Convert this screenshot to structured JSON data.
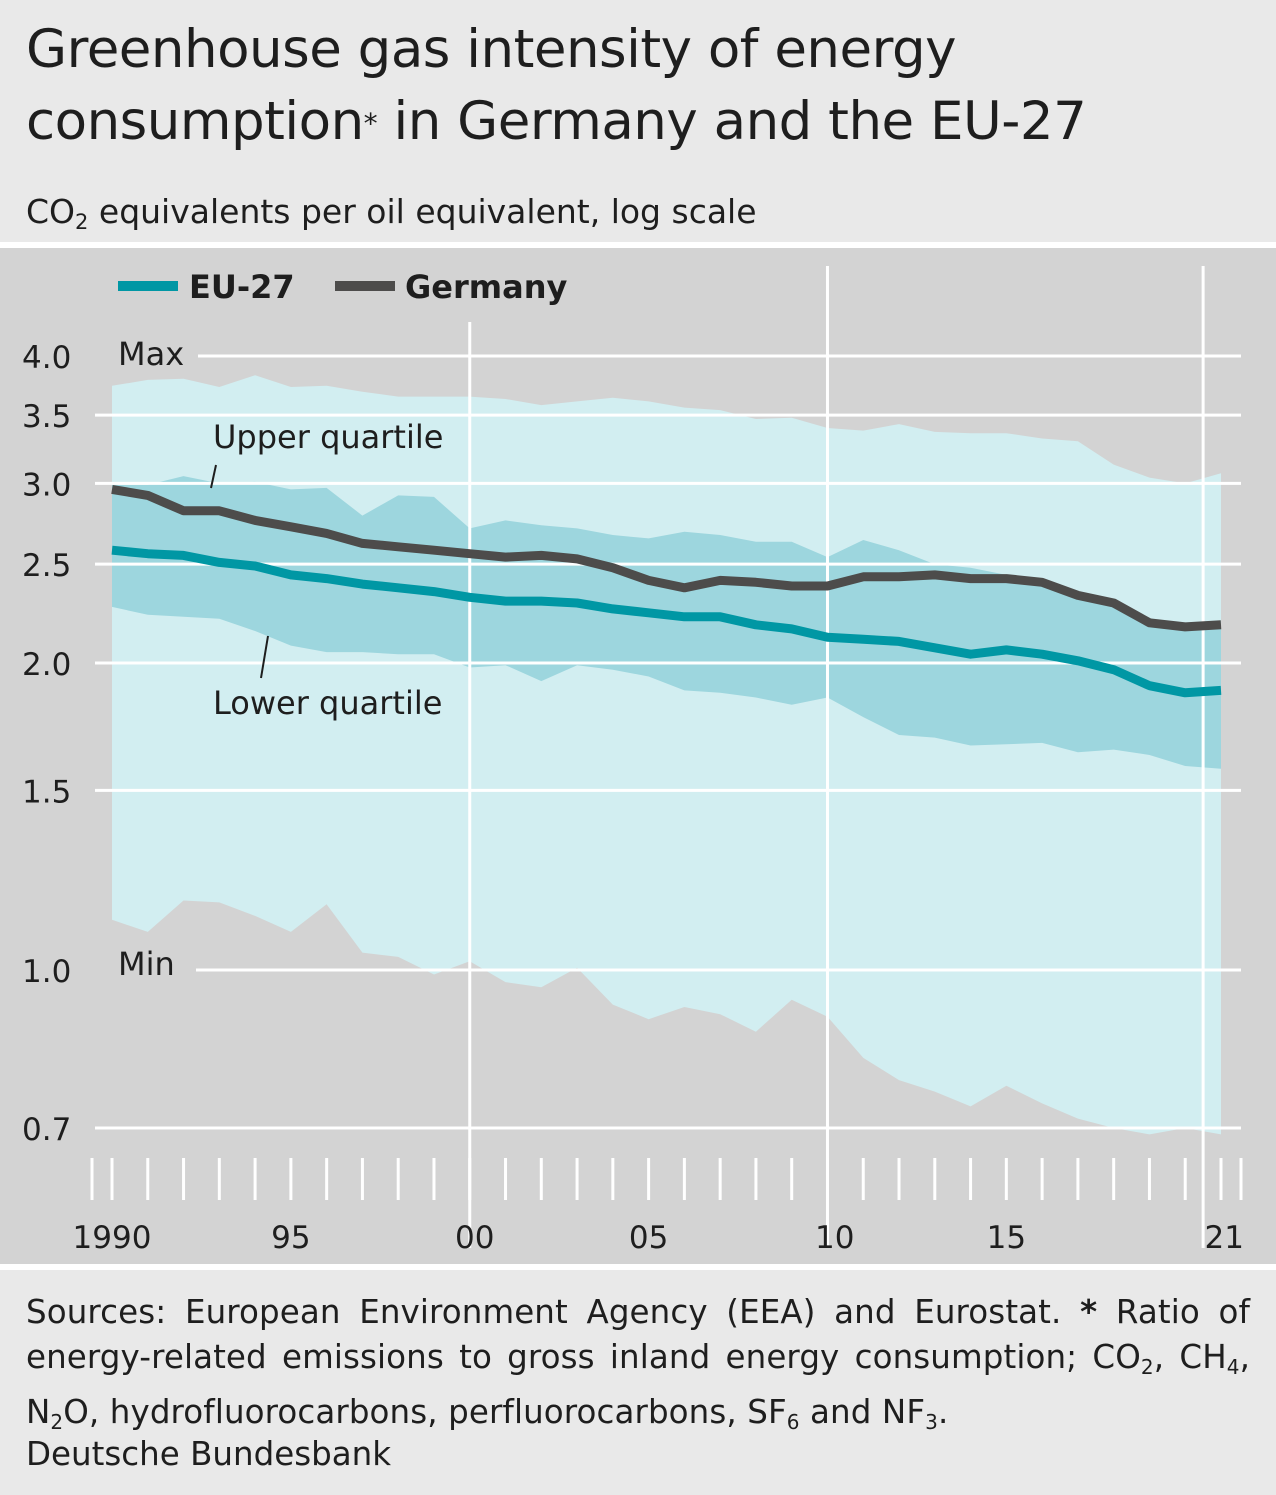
{
  "header": {
    "title_line1": "Greenhouse gas intensity of energy",
    "title_line2_a": "consumption",
    "title_mark": "*",
    "title_line2_b": " in Germany and the EU-27",
    "subtitle_a": "CO",
    "subtitle_sub": "2",
    "subtitle_b": " equivalents per oil equivalent, log scale"
  },
  "footer": {
    "sources": "Sources: European Environment Agency (EEA) and Eurostat.",
    "note_mark": "*",
    "note_a": " Ratio of energy-related emissions to gross inland energy consumption; CO",
    "note_sub1": "2",
    "note_b": ", CH",
    "note_sub2": "4",
    "note_c": ", N",
    "note_sub3": "2",
    "note_d": "O, hydrofluorocarbons, perfluorocarbons, SF",
    "note_sub4": "6",
    "note_e": " and NF",
    "note_sub5": "3",
    "note_f": ".",
    "publisher": "Deutsche Bundesbank"
  },
  "colors": {
    "plot_bg": "#d3d3d3",
    "range_band": "#d2eef1",
    "quartile_band": "#9dd6de",
    "eu27": "#0097a4",
    "germany": "#4d4c4b",
    "grid": "#ffffff"
  },
  "chart_data": {
    "type": "area",
    "yscale": "log",
    "ylim": [
      0.7,
      4.0
    ],
    "xlim": [
      1990,
      2021
    ],
    "grid": true,
    "legend_placement": "top-left",
    "x": [
      1990,
      1991,
      1992,
      1993,
      1994,
      1995,
      1996,
      1997,
      1998,
      1999,
      2000,
      2001,
      2002,
      2003,
      2004,
      2005,
      2006,
      2007,
      2008,
      2009,
      2010,
      2011,
      2012,
      2013,
      2014,
      2015,
      2016,
      2017,
      2018,
      2019,
      2020,
      2021
    ],
    "x_tick_labels": [
      {
        "x": 1990,
        "label": "1990"
      },
      {
        "x": 1995,
        "label": "95"
      },
      {
        "x": 2000,
        "label": "00"
      },
      {
        "x": 2005,
        "label": "05"
      },
      {
        "x": 2010,
        "label": "10"
      },
      {
        "x": 2015,
        "label": "15"
      },
      {
        "x": 2021,
        "label": "21"
      }
    ],
    "y_ticks": [
      {
        "value": 4.0,
        "label": "4.0"
      },
      {
        "value": 3.5,
        "label": "3.5"
      },
      {
        "value": 3.0,
        "label": "3.0"
      },
      {
        "value": 2.5,
        "label": "2.5"
      },
      {
        "value": 2.0,
        "label": "2.0"
      },
      {
        "value": 1.5,
        "label": "1.5"
      },
      {
        "value": 1.0,
        "label": "1.0"
      },
      {
        "value": 0.7,
        "label": "0.7"
      }
    ],
    "annotations": {
      "max": "Max",
      "min": "Min",
      "upper_quartile": "Upper quartile",
      "lower_quartile": "Lower quartile"
    },
    "bands": [
      {
        "name": "range",
        "upper_label": "Max",
        "lower_label": "Min",
        "upper": [
          3.74,
          3.79,
          3.8,
          3.73,
          3.83,
          3.73,
          3.74,
          3.69,
          3.65,
          3.65,
          3.65,
          3.63,
          3.58,
          3.61,
          3.64,
          3.61,
          3.56,
          3.54,
          3.47,
          3.48,
          3.4,
          3.38,
          3.43,
          3.37,
          3.36,
          3.36,
          3.32,
          3.3,
          3.13,
          3.04,
          3.0,
          3.07
        ],
        "lower": [
          1.12,
          1.09,
          1.17,
          1.165,
          1.13,
          1.09,
          1.16,
          1.04,
          1.03,
          0.99,
          1.02,
          0.973,
          0.962,
          1.005,
          0.925,
          0.895,
          0.92,
          0.905,
          0.87,
          0.935,
          0.9,
          0.82,
          0.78,
          0.76,
          0.735,
          0.77,
          0.74,
          0.715,
          0.7,
          0.69,
          0.7,
          0.69
        ]
      },
      {
        "name": "interquartile",
        "upper_label": "Upper quartile",
        "lower_label": "Lower quartile",
        "upper": [
          2.99,
          2.99,
          3.05,
          3.0,
          3.01,
          2.96,
          2.97,
          2.79,
          2.92,
          2.91,
          2.71,
          2.76,
          2.73,
          2.71,
          2.67,
          2.65,
          2.69,
          2.67,
          2.63,
          2.63,
          2.54,
          2.64,
          2.58,
          2.5,
          2.48,
          2.44,
          2.4,
          2.33,
          2.29,
          2.21,
          2.16,
          2.16
        ],
        "lower": [
          2.27,
          2.23,
          2.22,
          2.21,
          2.15,
          2.08,
          2.05,
          2.05,
          2.04,
          2.04,
          1.98,
          1.99,
          1.92,
          1.99,
          1.97,
          1.94,
          1.88,
          1.87,
          1.85,
          1.82,
          1.85,
          1.77,
          1.7,
          1.69,
          1.66,
          1.665,
          1.67,
          1.635,
          1.645,
          1.625,
          1.585,
          1.575
        ]
      }
    ],
    "series": [
      {
        "name": "EU-27",
        "values": [
          2.58,
          2.56,
          2.55,
          2.51,
          2.49,
          2.44,
          2.42,
          2.39,
          2.37,
          2.35,
          2.32,
          2.3,
          2.3,
          2.29,
          2.26,
          2.24,
          2.22,
          2.22,
          2.18,
          2.16,
          2.12,
          2.11,
          2.1,
          2.07,
          2.04,
          2.06,
          2.04,
          2.01,
          1.97,
          1.9,
          1.87,
          1.88
        ]
      },
      {
        "name": "Germany",
        "values": [
          2.96,
          2.92,
          2.82,
          2.82,
          2.76,
          2.72,
          2.68,
          2.62,
          2.6,
          2.58,
          2.56,
          2.54,
          2.55,
          2.53,
          2.48,
          2.41,
          2.37,
          2.41,
          2.4,
          2.38,
          2.38,
          2.43,
          2.43,
          2.44,
          2.42,
          2.42,
          2.4,
          2.33,
          2.29,
          2.19,
          2.17,
          2.18
        ]
      }
    ]
  }
}
